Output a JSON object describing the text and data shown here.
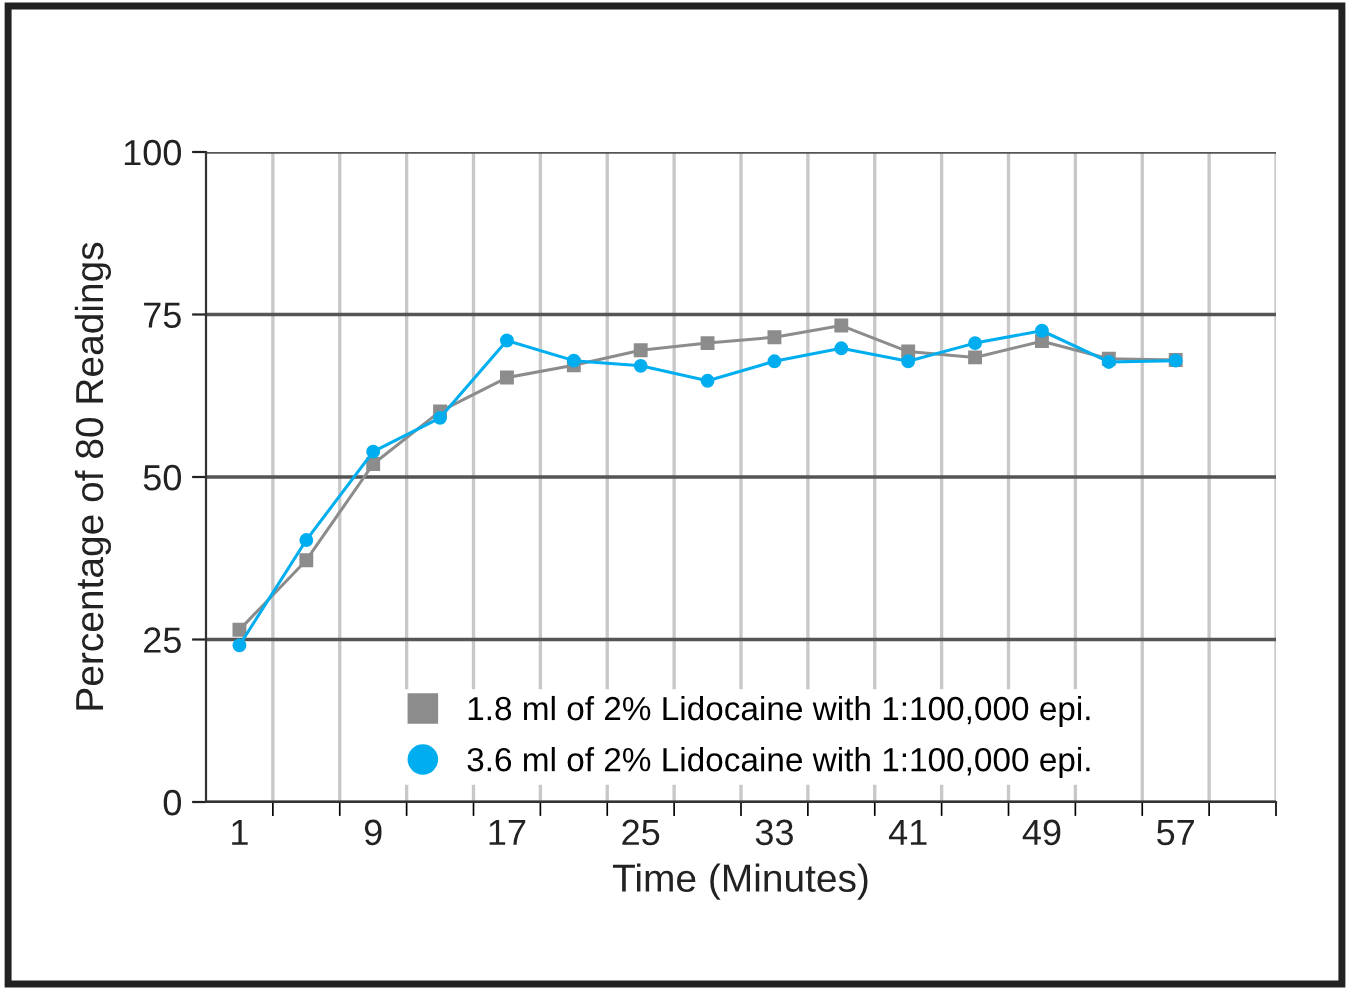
{
  "chart_data": {
    "type": "line",
    "xlabel": "Time (Minutes)",
    "ylabel": "Percentage of 80 Readings",
    "x": [
      1,
      5,
      9,
      13,
      17,
      21,
      25,
      29,
      33,
      37,
      41,
      45,
      49,
      53,
      57
    ],
    "series": [
      {
        "name": "1.8 ml of 2% Lidocaine with 1:100,000 epi.",
        "color": "#8c8c8c",
        "marker": "square",
        "values": [
          26.5,
          37.2,
          52.0,
          60.1,
          65.3,
          67.2,
          69.5,
          70.6,
          71.5,
          73.3,
          69.3,
          68.4,
          70.9,
          68.2,
          68.0
        ]
      },
      {
        "name": "3.6 ml of 2% Lidocaine with 1:100,000 epi.",
        "color": "#00aeef",
        "marker": "circle",
        "values": [
          24.1,
          40.3,
          53.9,
          59.1,
          71.0,
          67.9,
          67.1,
          64.8,
          67.8,
          69.8,
          67.8,
          70.6,
          72.5,
          67.7,
          67.9
        ]
      }
    ],
    "xlim": [
      -1,
      63
    ],
    "xticks": [
      1,
      {
        "value": 3,
        "label": null
      },
      {
        "value": 7,
        "label": null
      },
      9,
      {
        "value": 11,
        "label": null
      },
      {
        "value": 15,
        "label": null
      },
      17,
      {
        "value": 19,
        "label": null
      },
      {
        "value": 23,
        "label": null
      },
      25,
      {
        "value": 27,
        "label": null
      },
      {
        "value": 31,
        "label": null
      },
      33,
      {
        "value": 35,
        "label": null
      },
      {
        "value": 39,
        "label": null
      },
      41,
      {
        "value": 43,
        "label": null
      },
      {
        "value": 47,
        "label": null
      },
      49,
      {
        "value": 51,
        "label": null
      },
      {
        "value": 55,
        "label": null
      },
      57,
      {
        "value": 59,
        "label": null
      },
      {
        "value": 63,
        "label": null
      }
    ],
    "ylim": [
      0,
      100
    ],
    "yticks": [
      0,
      25,
      50,
      75,
      100
    ],
    "grid": true,
    "legend": "bottom",
    "line_style": "solid"
  }
}
